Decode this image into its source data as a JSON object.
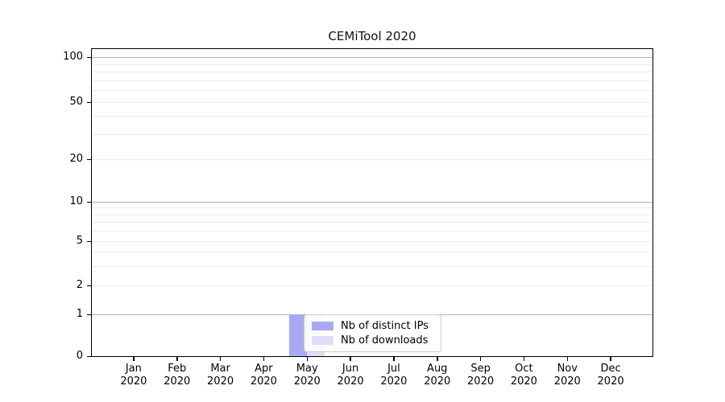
{
  "title": "CEMiTool 2020",
  "chart_data": {
    "type": "bar",
    "title": "CEMiTool 2020",
    "categories": [
      "Jan 2020",
      "Feb 2020",
      "Mar 2020",
      "Apr 2020",
      "May 2020",
      "Jun 2020",
      "Jul 2020",
      "Aug 2020",
      "Sep 2020",
      "Oct 2020",
      "Nov 2020",
      "Dec 2020"
    ],
    "series": [
      {
        "name": "Nb of distinct IPs",
        "color": "#a9a9f2",
        "values": [
          0,
          0,
          0,
          0,
          1,
          0,
          0,
          0,
          0,
          0,
          0,
          0
        ]
      },
      {
        "name": "Nb of downloads",
        "color": "#dedefb",
        "values": [
          0,
          0,
          0,
          0,
          1,
          0,
          0,
          0,
          0,
          0,
          0,
          0
        ]
      }
    ],
    "xlabel": "",
    "ylabel": "",
    "yscale": "symlog",
    "ylim": [
      0,
      120
    ],
    "yticks": [
      0,
      1,
      2,
      5,
      10,
      20,
      50,
      100
    ],
    "grid": {
      "orientation": "horizontal",
      "major_values": [
        1,
        10,
        100
      ],
      "minor_values": [
        2,
        3,
        4,
        5,
        6,
        7,
        8,
        9,
        20,
        30,
        40,
        50,
        60,
        70,
        80,
        90
      ],
      "major_color": "#b4b4b4",
      "minor_color": "#ebebeb"
    },
    "legend": {
      "entries": [
        "Nb of distinct IPs",
        "Nb of downloads"
      ],
      "position": "lower center"
    }
  }
}
